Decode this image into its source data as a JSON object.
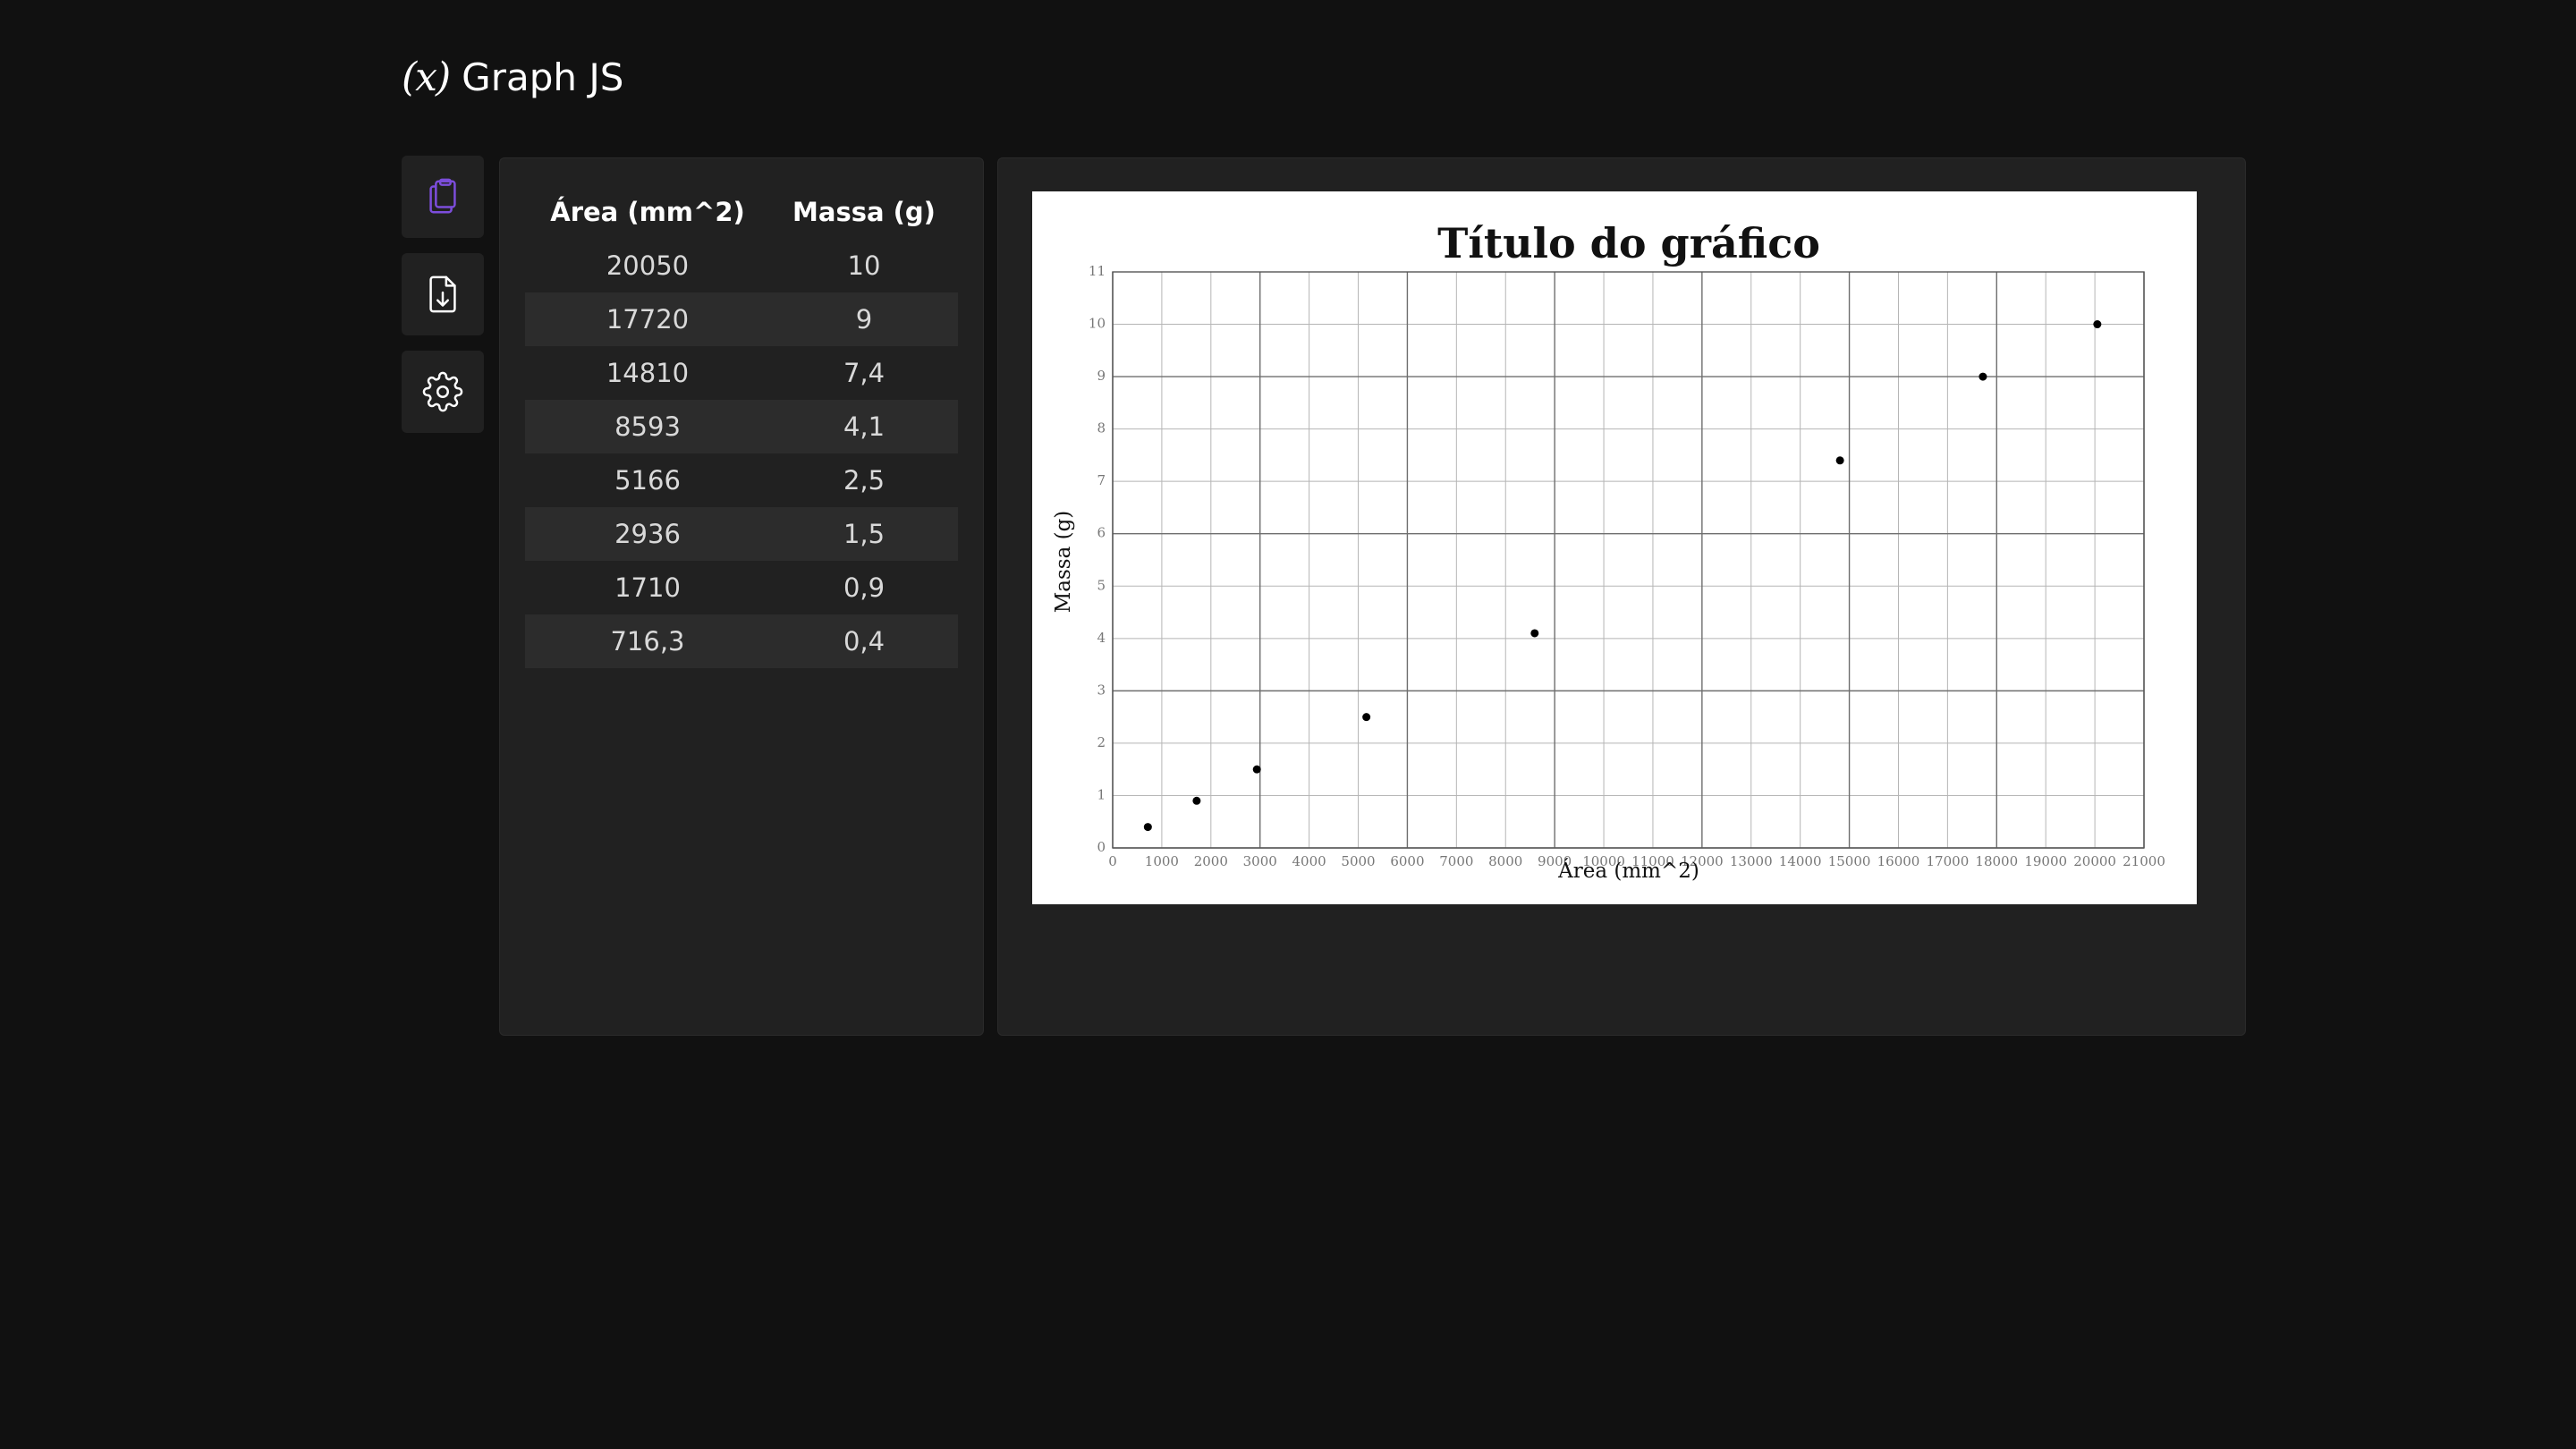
{
  "app": {
    "logo_mark": "(x)",
    "title": "Graph JS"
  },
  "sidebar": {
    "items": [
      {
        "icon": "clipboard-icon",
        "active": true
      },
      {
        "icon": "file-download-icon",
        "active": false
      },
      {
        "icon": "gear-icon",
        "active": false
      }
    ]
  },
  "table": {
    "headers": [
      "Área (mm^2)",
      "Massa (g)"
    ],
    "rows": [
      [
        "20050",
        "10"
      ],
      [
        "17720",
        "9"
      ],
      [
        "14810",
        "7,4"
      ],
      [
        "8593",
        "4,1"
      ],
      [
        "5166",
        "2,5"
      ],
      [
        "2936",
        "1,5"
      ],
      [
        "1710",
        "0,9"
      ],
      [
        "716,3",
        "0,4"
      ]
    ]
  },
  "colors": {
    "accent": "#7c4ddb",
    "background": "#111111",
    "panel": "#212121",
    "row_alt": "#2c2c2c"
  },
  "chart_data": {
    "type": "scatter",
    "title": "Título do gráfico",
    "xlabel": "Área (mm^2)",
    "ylabel": "Massa (g)",
    "xlim": [
      0,
      21000
    ],
    "ylim": [
      0,
      11
    ],
    "x_ticks": [
      "0",
      "1000",
      "2000",
      "3000",
      "4000",
      "5000",
      "6000",
      "7000",
      "8000",
      "9000",
      "10000",
      "11000",
      "12000",
      "13000",
      "14000",
      "15000",
      "16000",
      "17000",
      "18000",
      "19000",
      "20000",
      "21000"
    ],
    "y_ticks": [
      "0",
      "1",
      "2",
      "3",
      "4",
      "5",
      "6",
      "7",
      "8",
      "9",
      "10",
      "11"
    ],
    "grid": true,
    "series": [
      {
        "x": [
          20050,
          17720,
          14810,
          8593,
          5166,
          2936,
          1710,
          716.3
        ],
        "y": [
          10,
          9,
          7.4,
          4.1,
          2.5,
          1.5,
          0.9,
          0.4
        ]
      }
    ]
  }
}
